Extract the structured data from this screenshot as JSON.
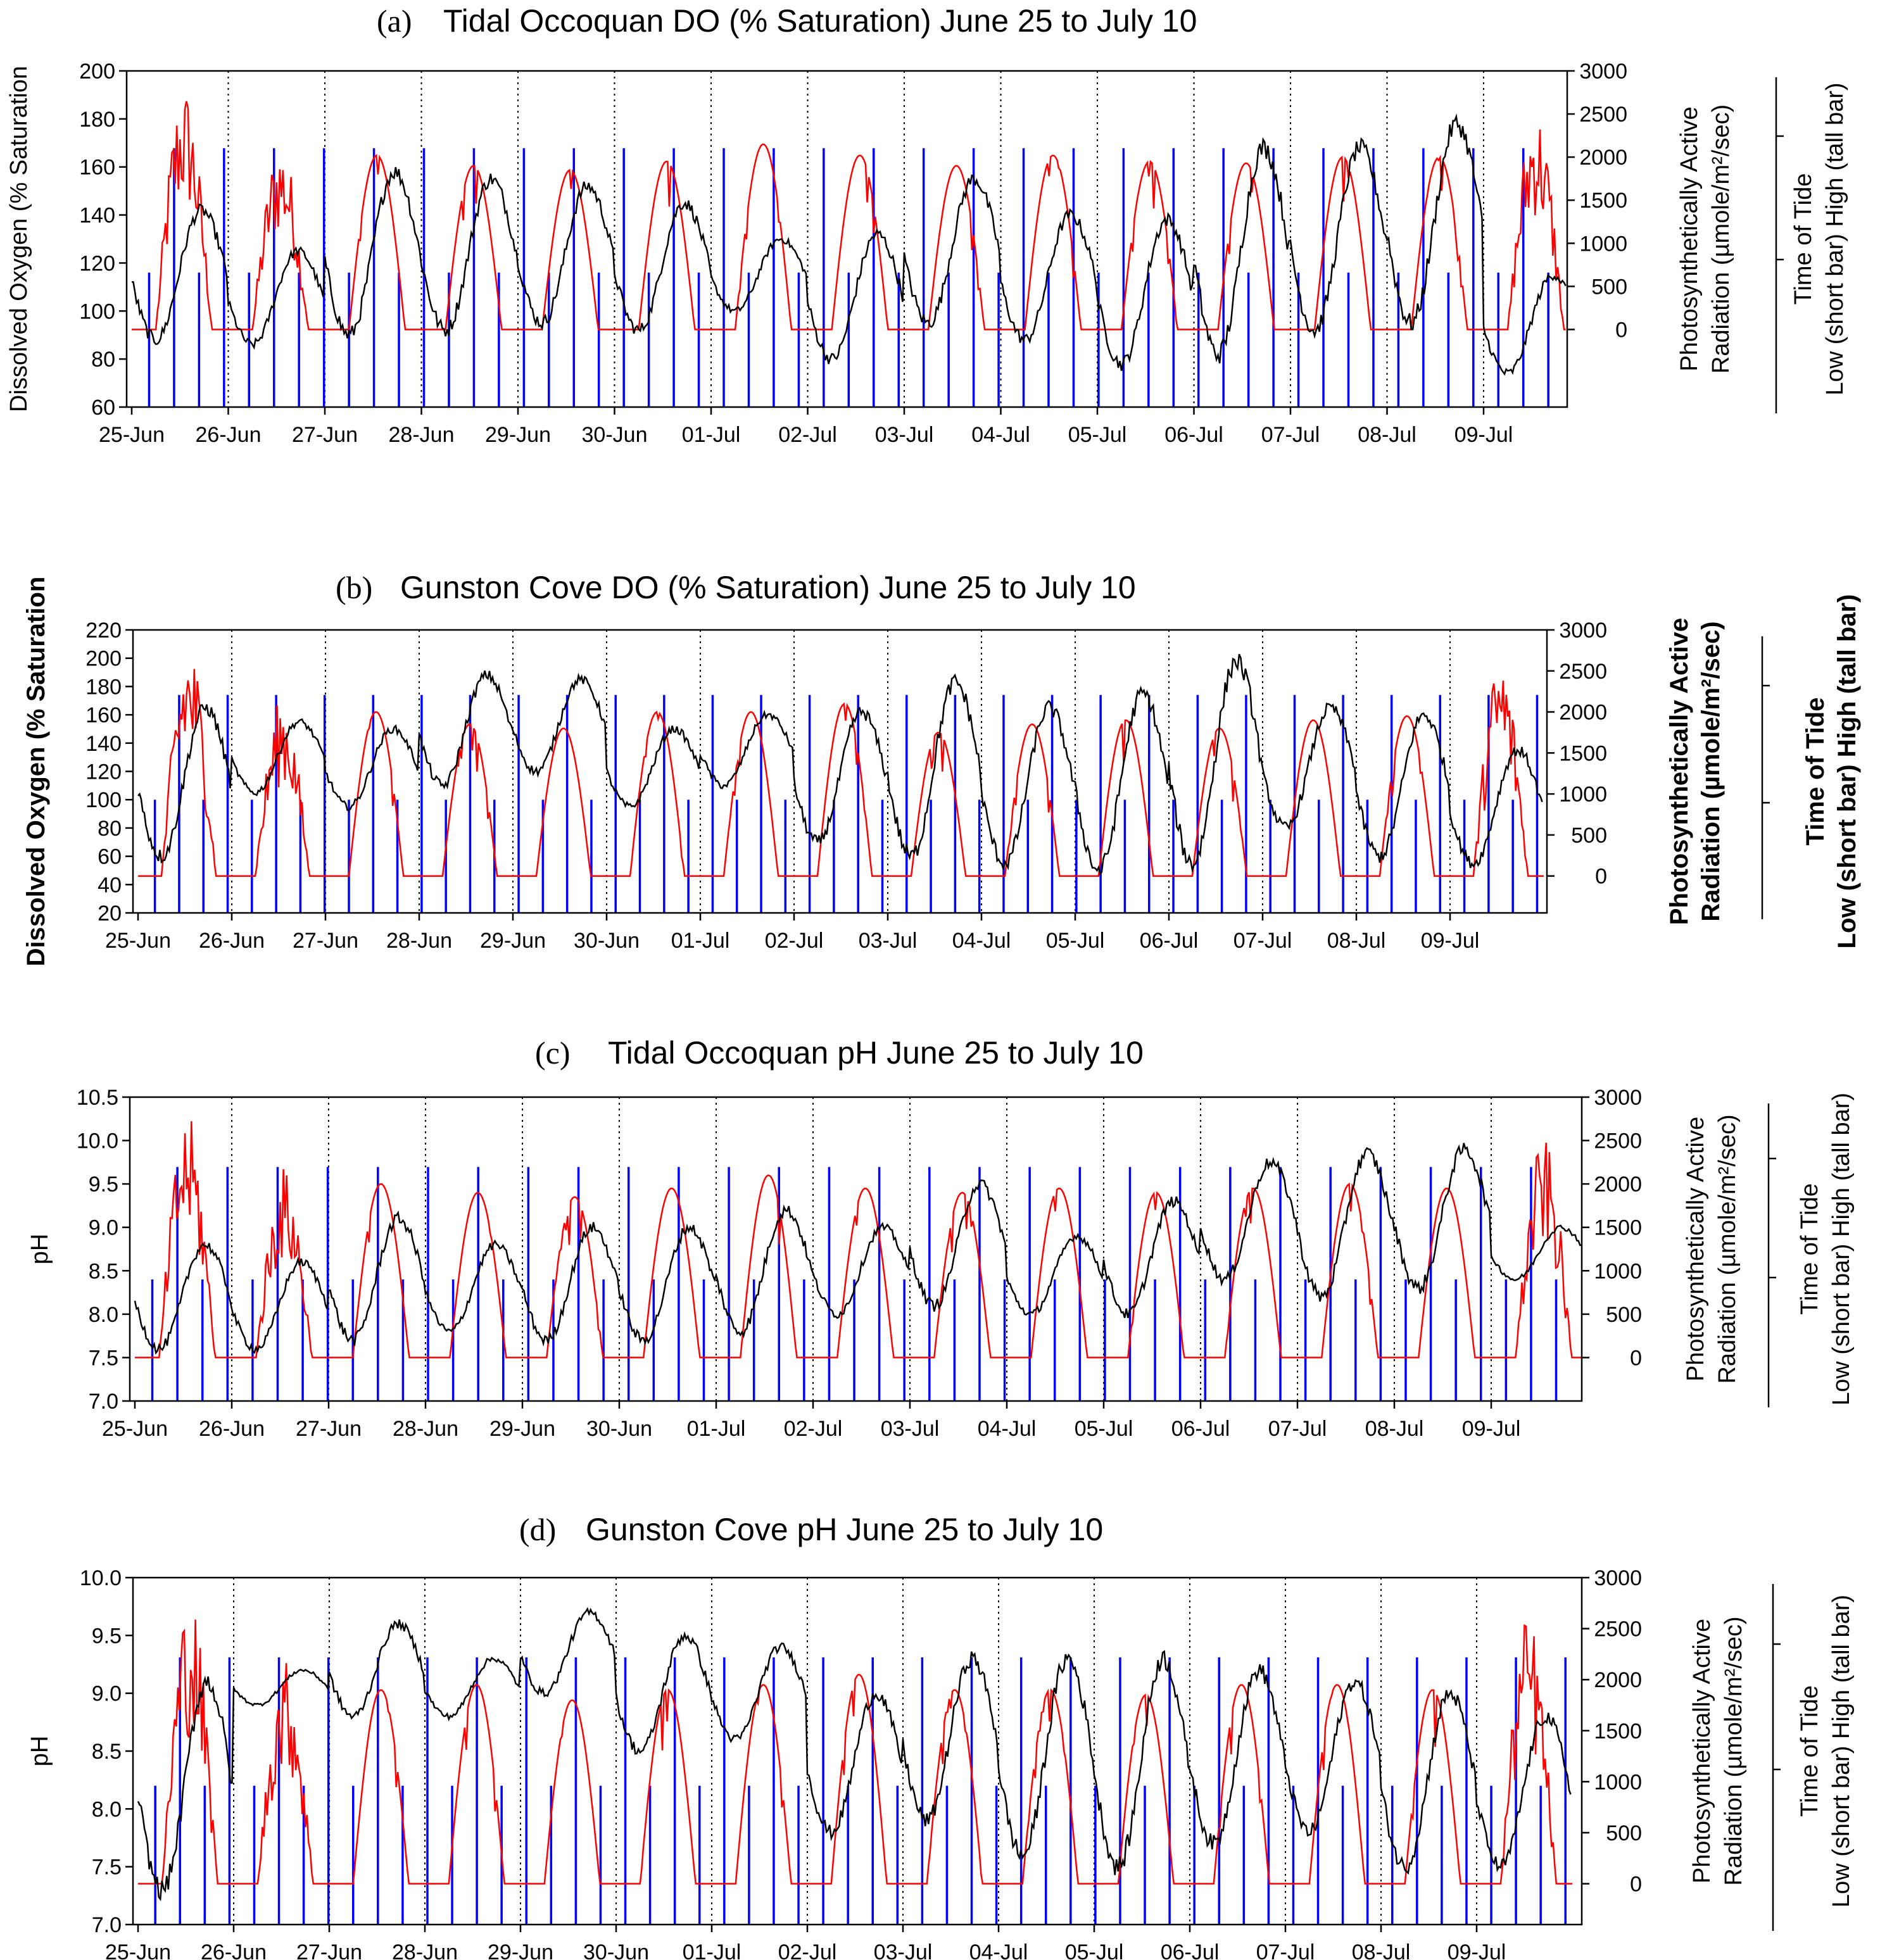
{
  "chart_data": [
    {
      "id": "a",
      "type": "line",
      "panel_letter": "(a)",
      "title": "Tidal Occoquan DO (% Saturation) June 25 to July 10",
      "ylabel_left": "Dissolved Oxygen (% Saturation",
      "ylabel_right_1": "Photosynthetically Active",
      "ylabel_right_2": "Radiation (µmole/m²/sec)",
      "tide_label_1": "Time of Tide",
      "tide_label_2": "Low (short bar)      High (tall bar)",
      "ylim_left": [
        60,
        200
      ],
      "yticks_left": [
        60,
        80,
        100,
        120,
        140,
        160,
        180,
        200
      ],
      "ylim_right": [
        -900,
        3000
      ],
      "yticks_right": [
        0,
        500,
        1000,
        1500,
        2000,
        2500,
        3000
      ],
      "xticks": [
        "25-Jun",
        "26-Jun",
        "27-Jun",
        "28-Jun",
        "29-Jun",
        "30-Jun",
        "01-Jul",
        "02-Jul",
        "03-Jul",
        "04-Jul",
        "05-Jul",
        "06-Jul",
        "07-Jul",
        "08-Jul",
        "09-Jul"
      ],
      "series": [
        {
          "name": "DO % saturation",
          "color": "#000000",
          "daily_min": [
            88,
            86,
            90,
            92,
            95,
            92,
            100,
            80,
            95,
            88,
            78,
            82,
            92,
            95,
            74
          ],
          "daily_max": [
            142,
            125,
            158,
            155,
            152,
            145,
            130,
            132,
            155,
            140,
            138,
            168,
            168,
            178,
            115
          ]
        },
        {
          "name": "PAR",
          "color": "#ff0000",
          "daily_peak": [
            2600,
            2000,
            2020,
            1900,
            1850,
            1950,
            2150,
            2020,
            1900,
            2020,
            1950,
            1930,
            2000,
            2000,
            2350
          ]
        },
        {
          "name": "Tide",
          "color": "#0000ff"
        }
      ]
    },
    {
      "id": "b",
      "type": "line",
      "panel_letter": "(b)",
      "title": "Gunston Cove DO (% Saturation) June 25 to July 10",
      "ylabel_left": "Dissolved Oxygen (% Saturation",
      "ylabel_right_1": "Photosynthetically Active",
      "ylabel_right_2": "Radiation (µmole/m²/sec)",
      "tide_label_1": "Time of Tide",
      "tide_label_2": "Low (short bar)      High (tall bar)",
      "ylim_left": [
        20,
        220
      ],
      "yticks_left": [
        20,
        40,
        60,
        80,
        100,
        120,
        140,
        160,
        180,
        200,
        220
      ],
      "ylim_right": [
        -450,
        3000
      ],
      "yticks_right": [
        0,
        500,
        1000,
        1500,
        2000,
        2500,
        3000
      ],
      "xticks": [
        "25-Jun",
        "26-Jun",
        "27-Jun",
        "28-Jun",
        "29-Jun",
        "30-Jun",
        "01-Jul",
        "02-Jul",
        "03-Jul",
        "04-Jul",
        "05-Jul",
        "06-Jul",
        "07-Jul",
        "08-Jul",
        "09-Jul"
      ],
      "series": [
        {
          "name": "DO % saturation",
          "color": "#000000",
          "daily_min": [
            60,
            105,
            95,
            110,
            120,
            95,
            110,
            70,
            60,
            55,
            50,
            55,
            80,
            60,
            55
          ],
          "daily_max": [
            165,
            155,
            150,
            188,
            185,
            150,
            160,
            162,
            183,
            165,
            175,
            198,
            165,
            160,
            135
          ]
        },
        {
          "name": "PAR",
          "color": "#ff0000",
          "daily_peak": [
            2600,
            2000,
            2000,
            1850,
            1800,
            2000,
            2000,
            2100,
            1750,
            1850,
            1900,
            1800,
            1900,
            1950,
            2450
          ]
        },
        {
          "name": "Tide",
          "color": "#0000ff"
        }
      ]
    },
    {
      "id": "c",
      "type": "line",
      "panel_letter": "(c)",
      "title": "Tidal Occoquan pH June 25 to July 10",
      "ylabel_left": "pH",
      "ylabel_right_1": "Photosynthetically Active",
      "ylabel_right_2": "Radiation (µmole/m²/sec)",
      "tide_label_1": "Time of Tide",
      "tide_label_2": "Low (short bar)      High (tall bar)",
      "ylim_left": [
        7.0,
        10.5
      ],
      "yticks_left": [
        7.0,
        7.5,
        8.0,
        8.5,
        9.0,
        9.5,
        10.0,
        10.5
      ],
      "ylim_right": [
        -500,
        3000
      ],
      "yticks_right": [
        0,
        500,
        1000,
        1500,
        2000,
        2500,
        3000
      ],
      "xticks": [
        "25-Jun",
        "26-Jun",
        "27-Jun",
        "28-Jun",
        "29-Jun",
        "30-Jun",
        "01-Jul",
        "02-Jul",
        "03-Jul",
        "04-Jul",
        "05-Jul",
        "06-Jul",
        "07-Jul",
        "08-Jul",
        "09-Jul"
      ],
      "series": [
        {
          "name": "pH",
          "color": "#000000",
          "daily_min": [
            7.6,
            7.6,
            7.7,
            7.8,
            7.7,
            7.7,
            7.8,
            8.0,
            8.1,
            8.0,
            8.0,
            8.4,
            8.2,
            8.3,
            8.4
          ],
          "daily_max": [
            8.8,
            8.6,
            9.1,
            8.8,
            9.0,
            9.0,
            9.2,
            9.0,
            9.5,
            8.9,
            9.3,
            9.75,
            9.85,
            9.9,
            9.0
          ]
        },
        {
          "name": "PAR",
          "color": "#ff0000",
          "daily_peak": [
            2550,
            2000,
            2000,
            1900,
            1850,
            1950,
            2100,
            1950,
            1900,
            1950,
            1900,
            1950,
            2000,
            1950,
            2300
          ]
        },
        {
          "name": "Tide",
          "color": "#0000ff"
        }
      ]
    },
    {
      "id": "d",
      "type": "line",
      "panel_letter": "(d)",
      "title": "Gunston Cove pH June 25 to July 10",
      "ylabel_left": "pH",
      "ylabel_right_1": "Photosynthetically Active",
      "ylabel_right_2": "Radiation (µmole/m²/sec)",
      "tide_label_1": "Time of Tide",
      "tide_label_2": "Low (short bar)      High (tall bar)",
      "ylim_left": [
        7.0,
        10.0
      ],
      "yticks_left": [
        7.0,
        7.5,
        8.0,
        8.5,
        9.0,
        9.5,
        10.0
      ],
      "ylim_right": [
        -400,
        3000
      ],
      "yticks_right": [
        0,
        500,
        1000,
        1500,
        2000,
        2500,
        3000
      ],
      "xticks": [
        "25-Jun",
        "26-Jun",
        "27-Jun",
        "28-Jun",
        "29-Jun",
        "30-Jun",
        "01-Jul",
        "02-Jul",
        "03-Jul",
        "04-Jul",
        "05-Jul",
        "06-Jul",
        "07-Jul",
        "08-Jul",
        "09-Jul"
      ],
      "series": [
        {
          "name": "pH",
          "color": "#000000",
          "daily_min": [
            7.3,
            8.9,
            8.8,
            8.8,
            9.0,
            8.5,
            8.6,
            7.8,
            7.9,
            7.6,
            7.5,
            7.7,
            7.8,
            7.5,
            7.5
          ],
          "daily_max": [
            9.1,
            9.2,
            9.6,
            9.3,
            9.7,
            9.5,
            9.4,
            9.0,
            9.3,
            9.3,
            9.3,
            9.2,
            9.1,
            9.0,
            8.8
          ]
        },
        {
          "name": "PAR",
          "color": "#ff0000",
          "daily_peak": [
            2600,
            2000,
            1900,
            1950,
            1800,
            1900,
            1950,
            2050,
            1900,
            1900,
            1850,
            1950,
            1950,
            1900,
            2400
          ]
        },
        {
          "name": "Tide",
          "color": "#0000ff"
        }
      ]
    }
  ]
}
